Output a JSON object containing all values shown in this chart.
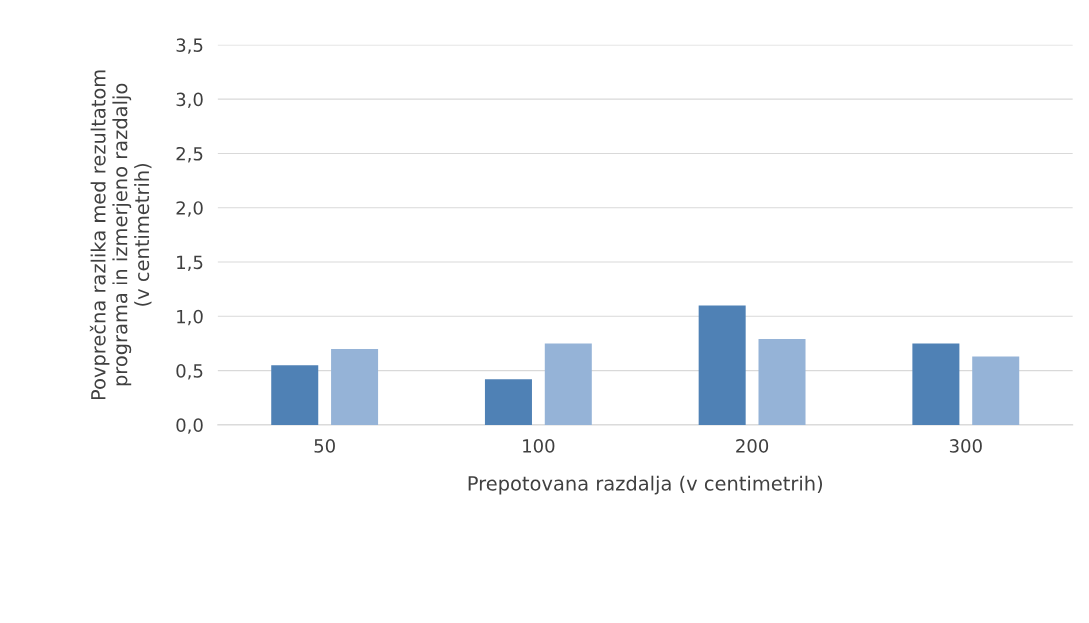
{
  "chart_data": {
    "type": "bar",
    "xlabel": "Prepotovana razdalja (v centimetrih)",
    "ylabel": "Povprečna razlika med rezultatom\nprograma in izmerjeno razdaljo\n(v centimetrih)",
    "categories": [
      "50",
      "100",
      "200",
      "300"
    ],
    "series": [
      {
        "color": "#4f81b5",
        "values": [
          0.55,
          0.42,
          1.1,
          0.75
        ]
      },
      {
        "color": "#95b3d7",
        "values": [
          0.7,
          0.75,
          0.79,
          0.63
        ]
      }
    ],
    "ylim": [
      0,
      3.5
    ],
    "yticks": [
      {
        "value": 0,
        "label": "0,0"
      },
      {
        "value": 0.5,
        "label": "0,5"
      },
      {
        "value": 1,
        "label": "1,0"
      },
      {
        "value": 1.5,
        "label": "1,5"
      },
      {
        "value": 2,
        "label": "2,0"
      },
      {
        "value": 2.5,
        "label": "2,5"
      },
      {
        "value": 3,
        "label": "3,0"
      },
      {
        "value": 3.5,
        "label": "3,5"
      }
    ],
    "grid": "y"
  }
}
